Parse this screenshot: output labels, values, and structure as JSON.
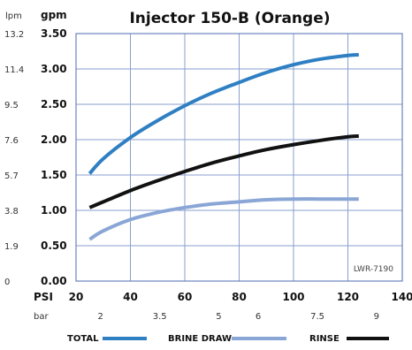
{
  "chart_data": {
    "type": "line",
    "title": "Injector 150-B (Orange)",
    "note": "LWR-7190",
    "x_axis": {
      "label": "PSI",
      "secondary_label": "bar",
      "range": [
        20,
        140
      ],
      "ticks": [
        20,
        40,
        60,
        80,
        100,
        120,
        140
      ],
      "secondary_ticks": [
        {
          "label": "2",
          "psi": 29
        },
        {
          "label": "3.5",
          "psi": 50.8
        },
        {
          "label": "5",
          "psi": 72.5
        },
        {
          "label": "6",
          "psi": 87
        },
        {
          "label": "7.5",
          "psi": 108.8
        },
        {
          "label": "9",
          "psi": 130.5
        }
      ]
    },
    "y_axis": {
      "label": "gpm",
      "secondary_label": "lpm",
      "range": [
        0,
        3.5
      ],
      "ticks": [
        "0.00",
        "0.50",
        "1.00",
        "1.50",
        "2.00",
        "2.50",
        "3.00",
        "3.50"
      ],
      "secondary_ticks": [
        "0",
        "1.9",
        "3.8",
        "5.7",
        "7.6",
        "9.5",
        "11.4",
        "13.2"
      ]
    },
    "series": [
      {
        "name": "TOTAL",
        "color": "#2f7fc3",
        "x": [
          25,
          30,
          40,
          50,
          60,
          70,
          80,
          90,
          100,
          110,
          120,
          124
        ],
        "y": [
          1.52,
          1.73,
          2.03,
          2.27,
          2.48,
          2.66,
          2.81,
          2.95,
          3.06,
          3.14,
          3.19,
          3.2
        ]
      },
      {
        "name": "BRINE DRAW",
        "color": "#8aa6d6",
        "x": [
          25,
          30,
          40,
          50,
          60,
          70,
          80,
          90,
          100,
          110,
          120,
          124
        ],
        "y": [
          0.59,
          0.71,
          0.87,
          0.97,
          1.04,
          1.09,
          1.12,
          1.15,
          1.16,
          1.16,
          1.16,
          1.16
        ]
      },
      {
        "name": "RINSE",
        "color": "#111111",
        "x": [
          25,
          30,
          40,
          50,
          60,
          70,
          80,
          90,
          100,
          110,
          120,
          124
        ],
        "y": [
          1.04,
          1.12,
          1.28,
          1.42,
          1.55,
          1.67,
          1.77,
          1.86,
          1.93,
          1.99,
          2.04,
          2.05
        ]
      }
    ],
    "grid": true,
    "legend": "bottom"
  }
}
